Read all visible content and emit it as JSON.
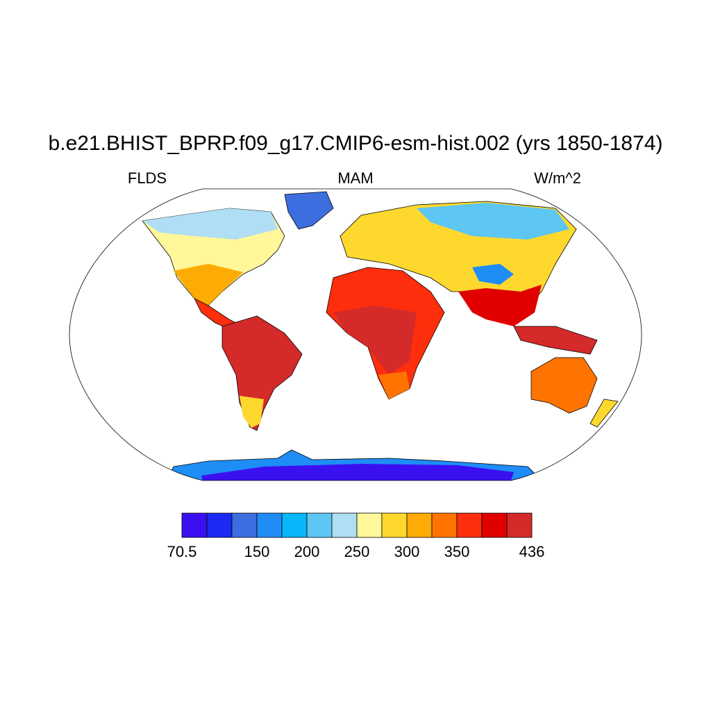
{
  "header": {
    "title": "b.e21.BHIST_BPRP.f09_g17.CMIP6-esm-hist.002 (yrs 1850-1874)",
    "left": "FLDS",
    "center": "MAM",
    "right": "W/m^2"
  },
  "colorbar": {
    "colors": [
      "#3b10f0",
      "#1a2af2",
      "#3c6ee0",
      "#1e8df6",
      "#08b6fa",
      "#5ec6f2",
      "#b0def4",
      "#fff799",
      "#ffd82e",
      "#ffab05",
      "#ff7400",
      "#ff2e0c",
      "#e00000",
      "#d42a2a"
    ],
    "boundaries": [
      70.5,
      null,
      null,
      150,
      null,
      200,
      null,
      250,
      null,
      300,
      null,
      350,
      null,
      null,
      436
    ]
  }
}
